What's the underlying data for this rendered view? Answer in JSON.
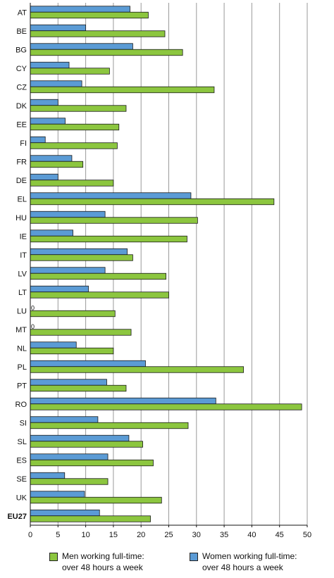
{
  "chart_data": {
    "type": "bar",
    "orientation": "horizontal",
    "categories": [
      "AT",
      "BE",
      "BG",
      "CY",
      "CZ",
      "DK",
      "EE",
      "FI",
      "FR",
      "DE",
      "EL",
      "HU",
      "IE",
      "IT",
      "LV",
      "LT",
      "LU",
      "MT",
      "NL",
      "PL",
      "PT",
      "RO",
      "SI",
      "SL",
      "ES",
      "SE",
      "UK",
      "EU27"
    ],
    "bold_categories": [
      "EU27"
    ],
    "series": [
      {
        "name": "Women working full-time: over 48 hours a week",
        "color": "#5b9bd5",
        "values": [
          18.0,
          10.0,
          18.5,
          7.0,
          9.3,
          5.0,
          6.3,
          2.7,
          7.5,
          5.0,
          29.0,
          13.5,
          7.7,
          17.5,
          13.5,
          10.5,
          0,
          0,
          8.3,
          20.8,
          13.8,
          33.5,
          12.2,
          17.8,
          14.0,
          6.2,
          9.8,
          12.5
        ],
        "value_labels": {
          "16": "0",
          "17": "0"
        }
      },
      {
        "name": "Men working full-time: over 48 hours a week",
        "color": "#8cc63f",
        "values": [
          21.3,
          24.3,
          27.5,
          14.3,
          33.2,
          17.3,
          16.0,
          15.7,
          9.5,
          15.0,
          44.0,
          30.2,
          28.3,
          18.5,
          24.5,
          25.0,
          15.3,
          18.2,
          15.0,
          38.5,
          17.3,
          49.0,
          28.5,
          20.3,
          22.2,
          14.0,
          23.7,
          21.7
        ]
      }
    ],
    "xlim": [
      0,
      50
    ],
    "xticks": [
      "0",
      "5",
      "10",
      "15",
      "20",
      "25",
      "30",
      "35",
      "40",
      "45",
      "50"
    ],
    "grid": "vertical",
    "legend_position": "bottom"
  },
  "legend": {
    "men": "Men working full-time:\nover 48 hours a week",
    "women": "Women working full-time:\nover 48 hours a week"
  }
}
